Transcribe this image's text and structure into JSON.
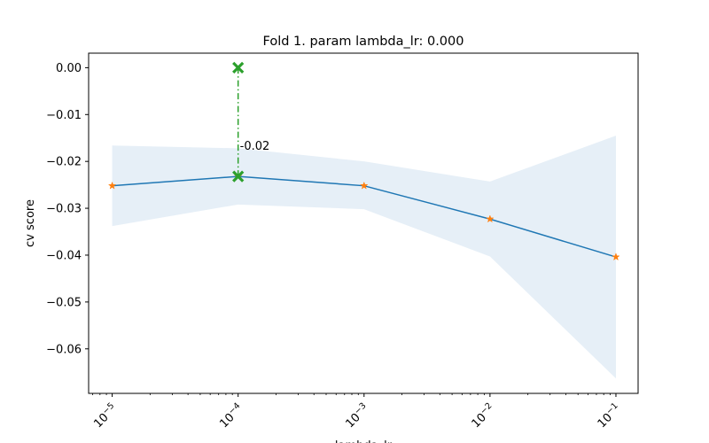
{
  "chart_data": {
    "type": "line",
    "title": "Fold 1. param lambda_lr: 0.000",
    "xlabel": "lambda_lr",
    "ylabel": "cv score",
    "xscale": "log",
    "xlim": [
      6.5e-06,
      0.15
    ],
    "ylim": [
      -0.0695,
      0.0031
    ],
    "x_ticks": [
      {
        "value": 1e-05,
        "base": "10",
        "exp": "−5"
      },
      {
        "value": 0.0001,
        "base": "10",
        "exp": "−4"
      },
      {
        "value": 0.001,
        "base": "10",
        "exp": "−3"
      },
      {
        "value": 0.01,
        "base": "10",
        "exp": "−2"
      },
      {
        "value": 0.1,
        "base": "10",
        "exp": "−1"
      }
    ],
    "y_ticks": [
      {
        "value": 0.0,
        "label": "0.00"
      },
      {
        "value": -0.01,
        "label": "−0.01"
      },
      {
        "value": -0.02,
        "label": "−0.02"
      },
      {
        "value": -0.03,
        "label": "−0.03"
      },
      {
        "value": -0.04,
        "label": "−0.04"
      },
      {
        "value": -0.05,
        "label": "−0.05"
      },
      {
        "value": -0.06,
        "label": "−0.06"
      }
    ],
    "series": [
      {
        "x": [
          1e-05,
          0.0001,
          0.001,
          0.01,
          0.1
        ],
        "y": [
          -0.0252,
          -0.0232,
          -0.0252,
          -0.0323,
          -0.0404
        ],
        "upper": [
          -0.0166,
          -0.0172,
          -0.02,
          -0.0243,
          -0.0145
        ],
        "lower": [
          -0.0338,
          -0.0292,
          -0.0302,
          -0.0403,
          -0.0663
        ],
        "line_color": "#1f77b4",
        "band_color": "#e6eff7",
        "marker_color": "#ff7f0e"
      }
    ],
    "best": {
      "x": 0.0001,
      "y": -0.0232,
      "y_top": 0.0,
      "label": "-0.02",
      "color": "#2ca02c"
    }
  }
}
